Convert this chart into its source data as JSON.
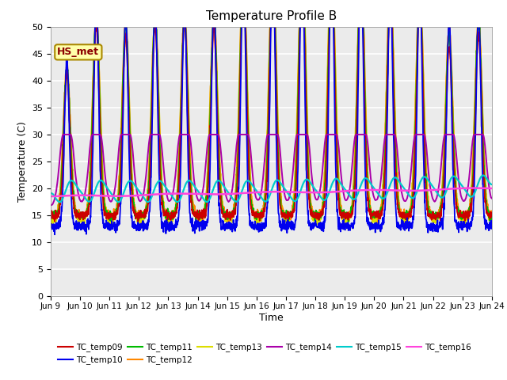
{
  "title": "Temperature Profile B",
  "xlabel": "Time",
  "ylabel": "Temperature (C)",
  "xlim": [
    0,
    15
  ],
  "ylim": [
    0,
    50
  ],
  "yticks": [
    0,
    5,
    10,
    15,
    20,
    25,
    30,
    35,
    40,
    45,
    50
  ],
  "xtick_labels": [
    "Jun 9",
    "Jun 10",
    "Jun 11",
    "Jun 12",
    "Jun 13",
    "Jun 14",
    "Jun 15",
    "Jun 16",
    "Jun 17",
    "Jun 18",
    "Jun 19",
    "Jun 20",
    "Jun 21",
    "Jun 22",
    "Jun 23",
    "Jun 24"
  ],
  "xtick_positions": [
    0,
    1,
    2,
    3,
    4,
    5,
    6,
    7,
    8,
    9,
    10,
    11,
    12,
    13,
    14,
    15
  ],
  "annotation_text": "HS_met",
  "background_color": "#e8e8e8",
  "series_colors": {
    "TC_temp09": "#cc0000",
    "TC_temp10": "#0000ee",
    "TC_temp11": "#00bb00",
    "TC_temp12": "#ff8800",
    "TC_temp13": "#dddd00",
    "TC_temp14": "#aa00aa",
    "TC_temp15": "#00cccc",
    "TC_temp16": "#ff44dd"
  }
}
